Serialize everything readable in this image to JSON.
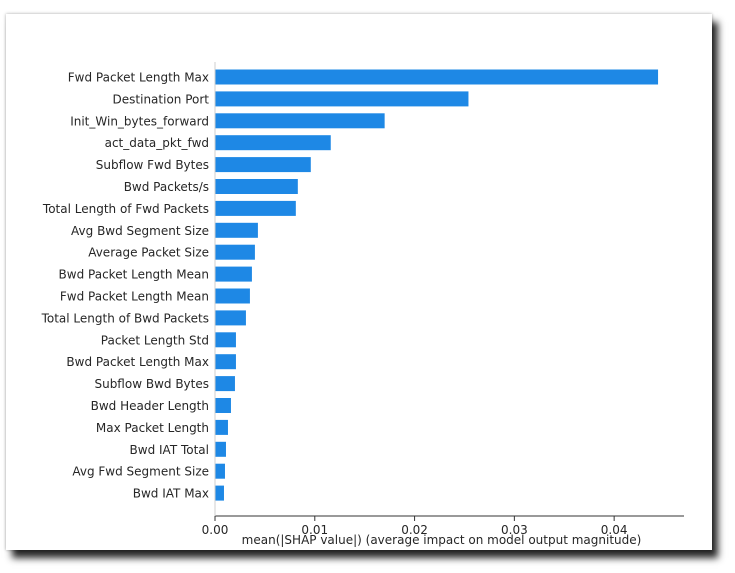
{
  "chart_data": {
    "type": "bar",
    "orientation": "horizontal",
    "categories": [
      "Fwd Packet Length Max",
      "Destination Port",
      "Init_Win_bytes_forward",
      "act_data_pkt_fwd",
      "Subflow Fwd Bytes",
      "Bwd Packets/s",
      "Total Length of Fwd Packets",
      "Avg Bwd Segment Size",
      "Average Packet Size",
      "Bwd Packet Length Mean",
      "Fwd Packet Length Mean",
      "Total Length of Bwd Packets",
      "Packet Length Std",
      "Bwd Packet Length Max",
      "Subflow Bwd Bytes",
      "Bwd Header Length",
      "Max Packet Length",
      "Bwd IAT Total",
      "Avg Fwd Segment Size",
      "Bwd IAT Max"
    ],
    "values": [
      0.0444,
      0.0254,
      0.017,
      0.0116,
      0.0096,
      0.0083,
      0.0081,
      0.0043,
      0.004,
      0.0037,
      0.0035,
      0.0031,
      0.0021,
      0.0021,
      0.002,
      0.0016,
      0.0013,
      0.0011,
      0.001,
      0.0009
    ],
    "xlabel": "mean(|SHAP value|) (average impact on model output magnitude)",
    "ylabel": "",
    "title": "",
    "xlim": [
      0.0,
      0.047
    ],
    "xticks": [
      "0.00",
      "0.01",
      "0.02",
      "0.03",
      "0.04"
    ],
    "xtick_values": [
      0.0,
      0.01,
      0.02,
      0.03,
      0.04
    ],
    "bar_color": "#1E88E5",
    "grid": false,
    "legend": "none"
  }
}
